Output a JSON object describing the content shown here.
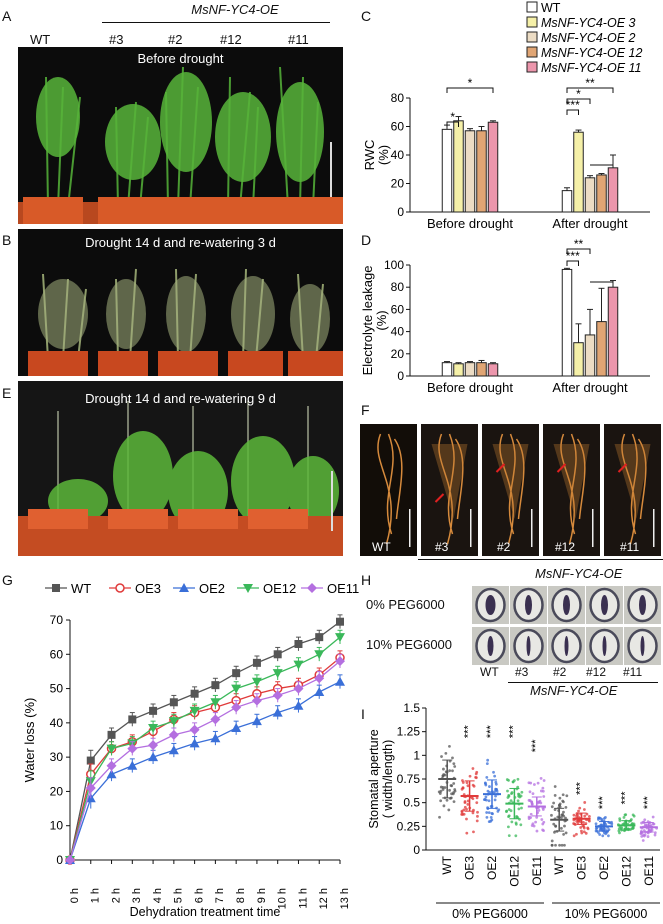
{
  "figure": {
    "panel_labels": {
      "A": "A",
      "B": "B",
      "C": "C",
      "D": "D",
      "E": "E",
      "F": "F",
      "G": "G",
      "H": "H",
      "I": "I"
    },
    "group_title": "MsNF-YC4-OE",
    "wt": "WT",
    "lines": [
      "#3",
      "#2",
      "#12",
      "#11"
    ],
    "photo_captions": {
      "A": "Before drought",
      "B": "Drought 14 d and re-watering 3 d",
      "E": "Drought 14 d and re-watering 9 d"
    },
    "root_labels": [
      "WT",
      "#3",
      "#2",
      "#12",
      "#11"
    ],
    "peg_rows": [
      "0% PEG6000",
      "10% PEG6000"
    ],
    "colors": {
      "WT": "#ffffff",
      "OE3": "#f5f0a8",
      "OE2": "#ecdcc4",
      "OE12": "#e0a574",
      "OE11": "#ec96ac"
    }
  },
  "chart_data": [
    {
      "type": "bar",
      "id": "C",
      "legend": [
        "WT",
        "MsNF-YC4-OE 3",
        "MsNF-YC4-OE 2",
        "MsNF-YC4-OE 12",
        "MsNF-YC4-OE 11"
      ],
      "categories": [
        "Before drought",
        "After drought"
      ],
      "series": [
        {
          "name": "WT",
          "values": [
            58,
            15
          ],
          "errors": [
            3,
            2
          ]
        },
        {
          "name": "OE3",
          "values": [
            64,
            56
          ],
          "errors": [
            3,
            1.5
          ]
        },
        {
          "name": "OE2",
          "values": [
            57,
            24
          ],
          "errors": [
            1.5,
            1.5
          ]
        },
        {
          "name": "OE12",
          "values": [
            57,
            26
          ],
          "errors": [
            3,
            1
          ]
        },
        {
          "name": "OE11",
          "values": [
            63,
            31
          ],
          "errors": [
            1,
            9
          ]
        }
      ],
      "ylabel": "RWC\n(%)",
      "ylim": [
        0,
        80
      ],
      "yticks": [
        0,
        20,
        40,
        60,
        80
      ],
      "significance": [
        "*",
        "*",
        "***",
        "*",
        "**"
      ]
    },
    {
      "type": "bar",
      "id": "D",
      "categories": [
        "Before drought",
        "After drought"
      ],
      "series": [
        {
          "name": "WT",
          "values": [
            12,
            96
          ],
          "errors": [
            1,
            1
          ]
        },
        {
          "name": "OE3",
          "values": [
            11,
            30
          ],
          "errors": [
            1,
            17
          ]
        },
        {
          "name": "OE2",
          "values": [
            12,
            37
          ],
          "errors": [
            1,
            23
          ]
        },
        {
          "name": "OE12",
          "values": [
            12,
            49
          ],
          "errors": [
            2,
            30
          ]
        },
        {
          "name": "OE11",
          "values": [
            11,
            80
          ],
          "errors": [
            1,
            6
          ]
        }
      ],
      "ylabel": "Electrolyte leakage\n(%)",
      "ylim": [
        0,
        100
      ],
      "yticks": [
        0,
        20,
        40,
        60,
        80,
        100
      ],
      "significance": [
        "***",
        "**"
      ]
    },
    {
      "type": "line",
      "id": "G",
      "x": [
        "0 h",
        "1 h",
        "2 h",
        "3 h",
        "4 h",
        "5 h",
        "6 h",
        "7 h",
        "8 h",
        "9 h",
        "10 h",
        "11 h",
        "12 h",
        "13 h"
      ],
      "series": [
        {
          "name": "WT",
          "color": "#555555",
          "marker": "square",
          "values": [
            0,
            29,
            36.5,
            41,
            43.5,
            46,
            48.5,
            51,
            54.5,
            57.5,
            60,
            63,
            65,
            69.5
          ]
        },
        {
          "name": "OE3",
          "color": "#e03a3a",
          "marker": "circle",
          "values": [
            0,
            25,
            32.5,
            34.5,
            37.5,
            41,
            43,
            44.5,
            46.5,
            48.5,
            50,
            51,
            54,
            59
          ]
        },
        {
          "name": "OE2",
          "color": "#3a6fd8",
          "marker": "triangle",
          "values": [
            0,
            18,
            25,
            27.5,
            30,
            32,
            34,
            35.5,
            38.5,
            40.5,
            43,
            45,
            49,
            52
          ]
        },
        {
          "name": "OE12",
          "color": "#3ab85a",
          "marker": "triangle-down",
          "values": [
            0,
            23,
            32.5,
            34,
            38.5,
            40.5,
            43.5,
            46,
            50,
            52,
            54.5,
            57,
            60,
            65
          ]
        },
        {
          "name": "OE11",
          "color": "#b46fe0",
          "marker": "diamond",
          "values": [
            0,
            21,
            27.5,
            32.5,
            33.5,
            36.5,
            38,
            41,
            44.5,
            46.5,
            48,
            50,
            53,
            58
          ]
        }
      ],
      "errors": [
        0,
        3,
        2,
        2,
        2,
        2,
        2,
        2,
        2,
        2,
        2,
        2,
        2,
        2
      ],
      "xlabel": "Dehydration treatment time",
      "ylabel": "Water loss (%)",
      "ylim": [
        0,
        70
      ],
      "yticks": [
        0,
        10,
        20,
        30,
        40,
        50,
        60,
        70
      ]
    },
    {
      "type": "scatter",
      "id": "I",
      "categories": [
        "WT",
        "OE3",
        "OE2",
        "OE12",
        "OE11",
        "WT",
        "OE3",
        "OE2",
        "OE12",
        "OE11"
      ],
      "groups": [
        "0% PEG6000",
        "10% PEG6000"
      ],
      "colors": [
        "#555555",
        "#e03a3a",
        "#3a6fd8",
        "#3ab85a",
        "#b46fe0",
        "#555555",
        "#e03a3a",
        "#3a6fd8",
        "#3ab85a",
        "#b46fe0"
      ],
      "means": [
        0.75,
        0.57,
        0.59,
        0.49,
        0.46,
        0.32,
        0.33,
        0.25,
        0.26,
        0.24
      ],
      "sds": [
        0.2,
        0.16,
        0.15,
        0.16,
        0.1,
        0.12,
        0.06,
        0.05,
        0.05,
        0.05
      ],
      "mins": [
        0.3,
        0.15,
        0.3,
        0.15,
        0.2,
        0.05,
        0.15,
        0.15,
        0.15,
        0.1
      ],
      "maxs": [
        1.3,
        1.2,
        1.2,
        1.2,
        1.05,
        1.1,
        0.6,
        0.45,
        0.5,
        0.45
      ],
      "significance": [
        "",
        "***",
        "***",
        "***",
        "***",
        "",
        "***",
        "***",
        "***",
        "***"
      ],
      "ylabel": "Stomatal aperture\n( width/length)",
      "ylim": [
        0,
        1.5
      ],
      "yticks": [
        "0",
        "0.25",
        "0.5",
        "0.75",
        "1",
        "1.25",
        "1.5"
      ]
    }
  ]
}
